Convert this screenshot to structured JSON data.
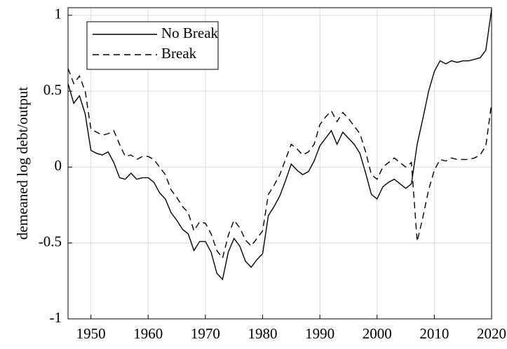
{
  "chart_data": {
    "type": "line",
    "ylabel": "demeaned log debt/output",
    "x": [
      1946,
      1947,
      1948,
      1949,
      1950,
      1951,
      1952,
      1953,
      1954,
      1955,
      1956,
      1957,
      1958,
      1959,
      1960,
      1961,
      1962,
      1963,
      1964,
      1965,
      1966,
      1967,
      1968,
      1969,
      1970,
      1971,
      1972,
      1973,
      1974,
      1975,
      1976,
      1977,
      1978,
      1979,
      1980,
      1981,
      1982,
      1983,
      1984,
      1985,
      1986,
      1987,
      1988,
      1989,
      1990,
      1991,
      1992,
      1993,
      1994,
      1995,
      1996,
      1997,
      1998,
      1999,
      2000,
      2001,
      2002,
      2003,
      2004,
      2005,
      2006,
      2007,
      2008,
      2009,
      2010,
      2011,
      2012,
      2013,
      2014,
      2015,
      2016,
      2017,
      2018,
      2019,
      2020
    ],
    "series": [
      {
        "name": "No Break",
        "color": "#000000",
        "dash": "solid",
        "values": [
          0.55,
          0.42,
          0.47,
          0.35,
          0.11,
          0.09,
          0.08,
          0.1,
          0.03,
          -0.07,
          -0.08,
          -0.04,
          -0.08,
          -0.07,
          -0.07,
          -0.1,
          -0.17,
          -0.21,
          -0.3,
          -0.35,
          -0.41,
          -0.44,
          -0.55,
          -0.49,
          -0.49,
          -0.56,
          -0.7,
          -0.74,
          -0.56,
          -0.47,
          -0.52,
          -0.62,
          -0.66,
          -0.61,
          -0.57,
          -0.32,
          -0.26,
          -0.19,
          -0.09,
          0.02,
          -0.02,
          -0.05,
          -0.03,
          0.04,
          0.14,
          0.19,
          0.24,
          0.15,
          0.23,
          0.19,
          0.15,
          0.09,
          -0.04,
          -0.18,
          -0.21,
          -0.13,
          -0.1,
          -0.08,
          -0.11,
          -0.14,
          -0.11,
          0.15,
          0.32,
          0.5,
          0.63,
          0.7,
          0.68,
          0.7,
          0.69,
          0.7,
          0.7,
          0.71,
          0.72,
          0.77,
          1.04
        ]
      },
      {
        "name": "Break",
        "color": "#000000",
        "dash": "dashed",
        "values": [
          0.65,
          0.55,
          0.6,
          0.5,
          0.25,
          0.23,
          0.21,
          0.22,
          0.24,
          0.15,
          0.07,
          0.08,
          0.05,
          0.07,
          0.07,
          0.05,
          0.0,
          -0.05,
          -0.15,
          -0.2,
          -0.26,
          -0.3,
          -0.42,
          -0.36,
          -0.37,
          -0.44,
          -0.55,
          -0.6,
          -0.45,
          -0.35,
          -0.4,
          -0.48,
          -0.52,
          -0.47,
          -0.42,
          -0.18,
          -0.12,
          -0.05,
          0.05,
          0.15,
          0.12,
          0.08,
          0.1,
          0.15,
          0.28,
          0.33,
          0.37,
          0.3,
          0.36,
          0.32,
          0.27,
          0.22,
          0.1,
          -0.05,
          -0.08,
          0.0,
          0.03,
          0.06,
          0.03,
          0.0,
          0.03,
          -0.49,
          -0.33,
          -0.15,
          -0.02,
          0.05,
          0.04,
          0.06,
          0.05,
          0.05,
          0.05,
          0.06,
          0.08,
          0.14,
          0.42
        ]
      }
    ],
    "xlim": [
      1946,
      2020
    ],
    "ylim": [
      -1,
      1.05
    ],
    "xticks": [
      1950,
      1960,
      1970,
      1980,
      1990,
      2000,
      2010,
      2020
    ],
    "yticks": [
      -1,
      -0.5,
      0,
      0.5,
      1
    ],
    "grid": true,
    "legend": "upper left"
  }
}
